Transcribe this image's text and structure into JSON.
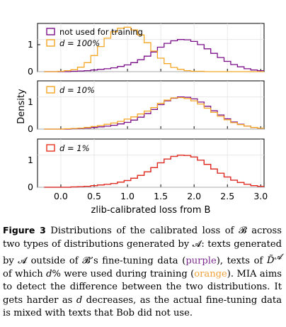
{
  "figure": {
    "ylabel": "Density",
    "xlabel": "zlib-calibrated loss from B",
    "colors": {
      "purple": "#7b0f8a",
      "orange": "#f5a623",
      "red": "#e8321e"
    },
    "panels": [
      {
        "legend": [
          "not used for training",
          "d = 100%"
        ]
      },
      {
        "legend": [
          "d = 10%"
        ]
      },
      {
        "legend": [
          "d = 1%"
        ]
      }
    ]
  },
  "chart_data": [
    {
      "type": "line",
      "panel": 1,
      "xlim": [
        -0.35,
        3.05
      ],
      "ylim": [
        0,
        1.5
      ],
      "xticks": [
        "0.0",
        "0.5",
        "1.0",
        "1.5",
        "2.0",
        "2.5",
        "3.0"
      ],
      "yticks": [
        "0",
        "1"
      ],
      "x": [
        -0.2,
        -0.1,
        0.0,
        0.1,
        0.2,
        0.3,
        0.4,
        0.5,
        0.6,
        0.7,
        0.8,
        0.9,
        1.0,
        1.1,
        1.2,
        1.3,
        1.4,
        1.5,
        1.6,
        1.7,
        1.8,
        1.9,
        2.0,
        2.1,
        2.2,
        2.3,
        2.4,
        2.5,
        2.6,
        2.7,
        2.8,
        2.9,
        3.0
      ],
      "series": [
        {
          "name": "not used for training",
          "color": "purple",
          "values": [
            0,
            0,
            0,
            0,
            0.01,
            0.02,
            0.03,
            0.05,
            0.07,
            0.09,
            0.12,
            0.16,
            0.21,
            0.28,
            0.37,
            0.48,
            0.61,
            0.76,
            0.88,
            0.96,
            1.0,
            0.99,
            0.94,
            0.84,
            0.71,
            0.57,
            0.44,
            0.32,
            0.22,
            0.15,
            0.09,
            0.05,
            0.03
          ]
        },
        {
          "name": "d = 100%",
          "color": "orange",
          "values": [
            0,
            0,
            0.01,
            0.03,
            0.06,
            0.14,
            0.28,
            0.5,
            0.78,
            1.04,
            1.24,
            1.35,
            1.38,
            1.3,
            1.14,
            0.9,
            0.64,
            0.42,
            0.25,
            0.13,
            0.07,
            0.03,
            0.01,
            0.01,
            0,
            0,
            0,
            0,
            0,
            0,
            0,
            0,
            0
          ]
        }
      ]
    },
    {
      "type": "line",
      "panel": 2,
      "xlim": [
        -0.35,
        3.05
      ],
      "ylim": [
        0,
        1.5
      ],
      "xticks": [
        "0.0",
        "0.5",
        "1.0",
        "1.5",
        "2.0",
        "2.5",
        "3.0"
      ],
      "yticks": [
        "0",
        "1"
      ],
      "x": [
        -0.2,
        -0.1,
        0.0,
        0.1,
        0.2,
        0.3,
        0.4,
        0.5,
        0.6,
        0.7,
        0.8,
        0.9,
        1.0,
        1.1,
        1.2,
        1.3,
        1.4,
        1.5,
        1.6,
        1.7,
        1.8,
        1.9,
        2.0,
        2.1,
        2.2,
        2.3,
        2.4,
        2.5,
        2.6,
        2.7,
        2.8,
        2.9,
        3.0
      ],
      "series": [
        {
          "name": "not used for training",
          "color": "purple",
          "values": [
            0,
            0,
            0,
            0,
            0.01,
            0.02,
            0.03,
            0.05,
            0.07,
            0.09,
            0.12,
            0.16,
            0.21,
            0.28,
            0.37,
            0.48,
            0.61,
            0.76,
            0.88,
            0.96,
            1.0,
            0.99,
            0.94,
            0.84,
            0.71,
            0.57,
            0.44,
            0.32,
            0.22,
            0.15,
            0.09,
            0.05,
            0.03
          ]
        },
        {
          "name": "d = 10%",
          "color": "orange",
          "values": [
            0,
            0,
            0,
            0.01,
            0.02,
            0.03,
            0.05,
            0.08,
            0.11,
            0.15,
            0.19,
            0.24,
            0.31,
            0.38,
            0.47,
            0.56,
            0.67,
            0.8,
            0.9,
            0.97,
            0.98,
            0.95,
            0.88,
            0.78,
            0.65,
            0.52,
            0.4,
            0.29,
            0.2,
            0.14,
            0.09,
            0.05,
            0.03
          ]
        }
      ]
    },
    {
      "type": "line",
      "panel": 3,
      "xlim": [
        -0.35,
        3.05
      ],
      "ylim": [
        0,
        1.5
      ],
      "xticks": [
        "0.0",
        "0.5",
        "1.0",
        "1.5",
        "2.0",
        "2.5",
        "3.0"
      ],
      "yticks": [
        "0",
        "1"
      ],
      "x": [
        -0.2,
        -0.1,
        0.0,
        0.1,
        0.2,
        0.3,
        0.4,
        0.5,
        0.6,
        0.7,
        0.8,
        0.9,
        1.0,
        1.1,
        1.2,
        1.3,
        1.4,
        1.5,
        1.6,
        1.7,
        1.8,
        1.9,
        2.0,
        2.1,
        2.2,
        2.3,
        2.4,
        2.5,
        2.6,
        2.7,
        2.8,
        2.9,
        3.0
      ],
      "series": [
        {
          "name": "not used for training",
          "color": "purple",
          "values": [
            0,
            0,
            0,
            0,
            0.01,
            0.02,
            0.03,
            0.05,
            0.07,
            0.09,
            0.12,
            0.16,
            0.21,
            0.28,
            0.37,
            0.48,
            0.61,
            0.76,
            0.88,
            0.96,
            1.0,
            0.99,
            0.94,
            0.84,
            0.71,
            0.57,
            0.44,
            0.32,
            0.22,
            0.15,
            0.09,
            0.05,
            0.03
          ]
        },
        {
          "name": "d = 1%",
          "color": "red",
          "values": [
            0,
            0,
            0,
            0,
            0.01,
            0.02,
            0.03,
            0.05,
            0.07,
            0.09,
            0.12,
            0.16,
            0.21,
            0.28,
            0.37,
            0.48,
            0.61,
            0.76,
            0.88,
            0.96,
            1.0,
            0.99,
            0.94,
            0.84,
            0.71,
            0.57,
            0.44,
            0.32,
            0.22,
            0.15,
            0.09,
            0.05,
            0.03
          ]
        }
      ]
    }
  ],
  "caption": {
    "label": "Figure 3",
    "p1": " Distributions of the calibrated loss of ",
    "B": "𝓑",
    "p2": " across two types of distributions generated by ",
    "A": "𝓐",
    "p3": ": texts generated by ",
    "p4": " outside of ",
    "p5": "’s fine-tuning data (",
    "purple_word": "purple",
    "p6": "), texts of ",
    "D": "D̃",
    "p7": " of which ",
    "d": "d",
    "p8": "% were used during training (",
    "orange_word": "orange",
    "p9": "). MIA aims to detect the difference between the two distributions. It gets harder as ",
    "p10": " decreases, as the actual fine-tuning data is mixed with texts that Bob did not use."
  }
}
